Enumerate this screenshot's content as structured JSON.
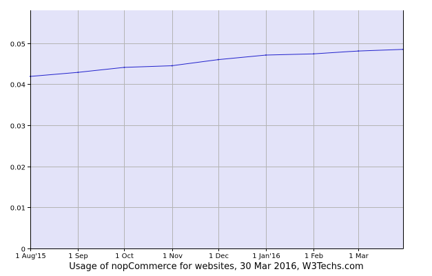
{
  "chart_data": {
    "type": "line",
    "title": "",
    "xlabel": "",
    "ylabel": "",
    "caption": "Usage of nopCommerce for websites, 30 Mar 2016, W3Techs.com",
    "x_tick_labels": [
      "1 Aug'15",
      "1 Sep",
      "1 Oct",
      "1 Nov",
      "1 Dec",
      "1 Jan'16",
      "1 Feb",
      "1 Mar"
    ],
    "x_ticks": [
      "2015-08-01",
      "2015-09-01",
      "2015-10-01",
      "2015-11-01",
      "2015-12-01",
      "2016-01-01",
      "2016-02-01",
      "2016-03-01"
    ],
    "xlim": [
      "2015-08-01",
      "2016-03-30"
    ],
    "y_ticks": [
      0,
      0.01,
      0.02,
      0.03,
      0.04,
      0.05
    ],
    "y_tick_labels": [
      "0",
      "0.01",
      "0.02",
      "0.03",
      "0.04",
      "0.05"
    ],
    "ylim": [
      0,
      0.058
    ],
    "grid": true,
    "series": [
      {
        "x": [
          "2015-08-01",
          "2015-09-01",
          "2015-10-01",
          "2015-11-01",
          "2015-12-01",
          "2016-01-01",
          "2016-02-01",
          "2016-03-01",
          "2016-03-30"
        ],
        "values": [
          0.0419,
          0.0429,
          0.0441,
          0.0445,
          0.046,
          0.0471,
          0.0474,
          0.0481,
          0.0485
        ]
      }
    ],
    "colors": {
      "plot_background": "#e3e3f9",
      "line": "#2222cc",
      "grid": "#b4b4b4",
      "axis": "#000000"
    }
  }
}
